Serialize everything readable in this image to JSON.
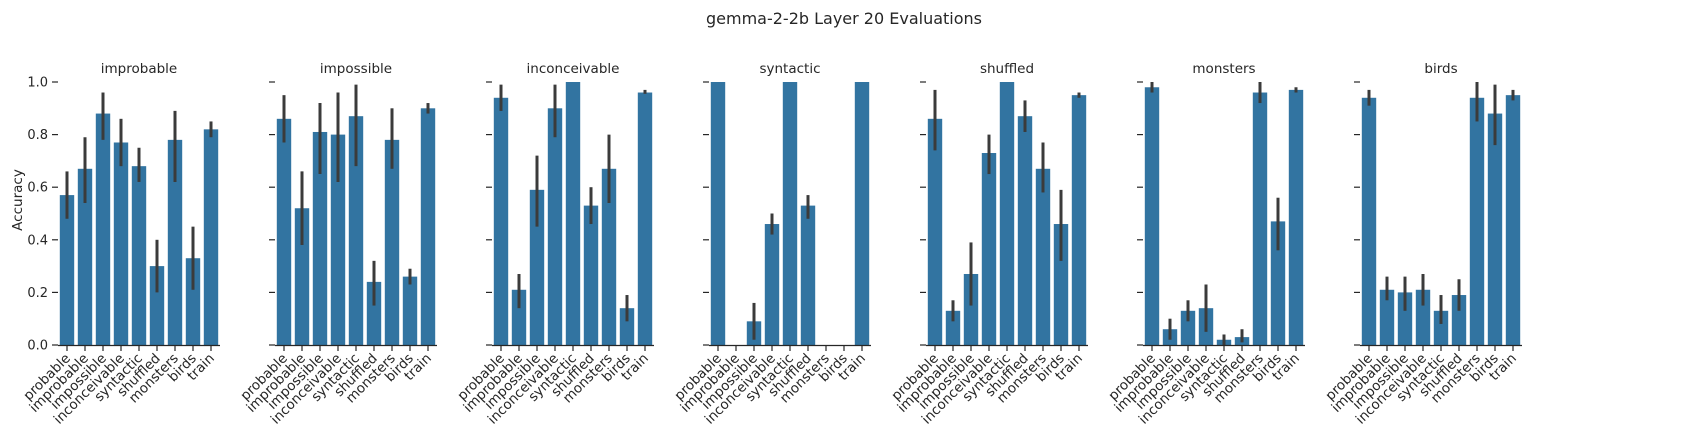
{
  "chart_data": {
    "type": "bar",
    "title": "gemma-2-2b Layer 20 Evaluations",
    "ylabel": "Accuracy",
    "xlabel": "",
    "ylim": [
      0,
      1.0
    ],
    "yticks": [
      "0.0",
      "0.2",
      "0.4",
      "0.6",
      "0.8",
      "1.0"
    ],
    "bar_color": "#3274a1",
    "errorbar_color": "#3b3b3b",
    "categories": [
      "probable",
      "improbable",
      "impossible",
      "inconceivable",
      "syntactic",
      "shuffled",
      "monsters",
      "birds",
      "train"
    ],
    "panels": [
      {
        "title": "improbable",
        "values": [
          0.57,
          0.67,
          0.88,
          0.77,
          0.68,
          0.3,
          0.78,
          0.33,
          0.82
        ],
        "err_low": [
          0.48,
          0.54,
          0.78,
          0.68,
          0.62,
          0.2,
          0.62,
          0.21,
          0.79
        ],
        "err_high": [
          0.66,
          0.79,
          0.96,
          0.86,
          0.75,
          0.4,
          0.89,
          0.45,
          0.85
        ]
      },
      {
        "title": "impossible",
        "values": [
          0.86,
          0.52,
          0.81,
          0.8,
          0.87,
          0.24,
          0.78,
          0.26,
          0.9
        ],
        "err_low": [
          0.77,
          0.38,
          0.65,
          0.62,
          0.68,
          0.15,
          0.67,
          0.23,
          0.88
        ],
        "err_high": [
          0.95,
          0.66,
          0.92,
          0.96,
          0.99,
          0.32,
          0.9,
          0.29,
          0.92
        ]
      },
      {
        "title": "inconceivable",
        "values": [
          0.94,
          0.21,
          0.59,
          0.9,
          1.0,
          0.53,
          0.67,
          0.14,
          0.96
        ],
        "err_low": [
          0.89,
          0.14,
          0.45,
          0.79,
          1.0,
          0.46,
          0.54,
          0.09,
          0.955
        ],
        "err_high": [
          0.99,
          0.27,
          0.72,
          0.99,
          1.0,
          0.6,
          0.8,
          0.19,
          0.97
        ]
      },
      {
        "title": "syntactic",
        "values": [
          1.0,
          0.0,
          0.09,
          0.46,
          1.0,
          0.53,
          0.0,
          0.0,
          1.0
        ],
        "err_low": [
          1.0,
          0.0,
          0.02,
          0.42,
          1.0,
          0.48,
          0.0,
          0.0,
          1.0
        ],
        "err_high": [
          1.0,
          0.0,
          0.16,
          0.5,
          1.0,
          0.57,
          0.0,
          0.0,
          1.0
        ]
      },
      {
        "title": "shuffled",
        "values": [
          0.86,
          0.13,
          0.27,
          0.73,
          1.0,
          0.87,
          0.67,
          0.46,
          0.95
        ],
        "err_low": [
          0.74,
          0.09,
          0.15,
          0.65,
          1.0,
          0.81,
          0.58,
          0.32,
          0.94
        ],
        "err_high": [
          0.97,
          0.17,
          0.39,
          0.8,
          1.0,
          0.93,
          0.77,
          0.59,
          0.96
        ]
      },
      {
        "title": "monsters",
        "values": [
          0.98,
          0.06,
          0.13,
          0.14,
          0.02,
          0.03,
          0.96,
          0.47,
          0.97
        ],
        "err_low": [
          0.96,
          0.02,
          0.09,
          0.05,
          0.0,
          0.01,
          0.92,
          0.36,
          0.96
        ],
        "err_high": [
          1.0,
          0.1,
          0.17,
          0.23,
          0.04,
          0.06,
          1.0,
          0.56,
          0.98
        ]
      },
      {
        "title": "birds",
        "values": [
          0.94,
          0.21,
          0.2,
          0.21,
          0.13,
          0.19,
          0.94,
          0.88,
          0.95
        ],
        "err_low": [
          0.91,
          0.17,
          0.13,
          0.15,
          0.08,
          0.13,
          0.85,
          0.76,
          0.93
        ],
        "err_high": [
          0.97,
          0.26,
          0.26,
          0.27,
          0.19,
          0.25,
          1.0,
          0.99,
          0.97
        ]
      }
    ]
  }
}
